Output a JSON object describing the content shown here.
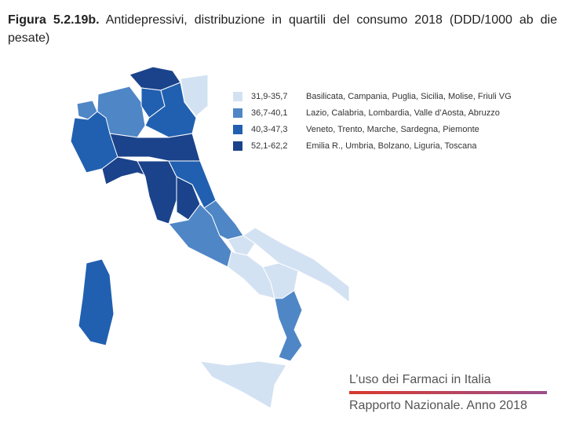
{
  "title": {
    "label": "Figura 5.2.19b.",
    "text": "Antidepressivi, distribuzione in quartili del consumo 2018 (DDD/1000 ab die pesate)"
  },
  "legend": [
    {
      "range": "31,9-35,7",
      "regions": "Basilicata, Campania, Puglia, Sicilia, Molise, Friuli VG",
      "color": "#d3e2f2"
    },
    {
      "range": "36,7-40,1",
      "regions": "Lazio, Calabria, Lombardia, Valle d’Aosta, Abruzzo",
      "color": "#4f86c6"
    },
    {
      "range": "40,3-47,3",
      "regions": "Veneto, Trento, Marche, Sardegna, Piemonte",
      "color": "#2160b0"
    },
    {
      "range": "52,1-62,2",
      "regions": "Emilia R., Umbria, Bolzano, Liguria, Toscana",
      "color": "#1b438b"
    }
  ],
  "footer": {
    "line1": "L’uso dei Farmaci in Italia",
    "line2": "Rapporto Nazionale. Anno 2018"
  }
}
